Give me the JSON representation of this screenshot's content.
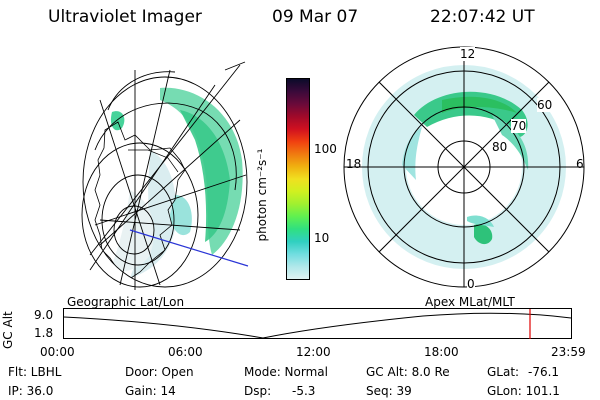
{
  "header": {
    "title": "Ultraviolet Imager",
    "date": "09 Mar 07",
    "time": "22:07:42 UT"
  },
  "colorbar": {
    "unit_label": "photon cm⁻²s⁻¹",
    "ticks": [
      "100",
      "10"
    ],
    "colors": [
      "#0b0b2a",
      "#3a0a3a",
      "#6a0a3a",
      "#a00a2a",
      "#d01020",
      "#f04010",
      "#f07a10",
      "#f0b010",
      "#f0e020",
      "#d0f020",
      "#a0f030",
      "#60f050",
      "#30e080",
      "#30d0c0",
      "#70dde0",
      "#b0e8ea",
      "#dff2f2"
    ]
  },
  "polar_plot": {
    "mlt_labels": {
      "top": "12",
      "right": "6",
      "bottom": "0",
      "left": "18"
    },
    "lat_labels": [
      "60",
      "70",
      "80"
    ]
  },
  "timeline": {
    "left_label": "Geographic Lat/Lon",
    "right_label": "Apex MLat/MLT",
    "yaxis_label": "GC Alt",
    "ymax": "9.0",
    "ymin": "1.8",
    "x_ticks": [
      "00:00",
      "06:00",
      "12:00",
      "18:00",
      "23:59"
    ],
    "marker_color": "#e00000"
  },
  "info": {
    "flt": "Flt: LBHL",
    "ip": "IP: 36.0",
    "door": "Door: Open",
    "gain": "Gain: 14",
    "mode": "Mode: Normal",
    "dsp_label": "Dsp:",
    "dsp_value": "-5.3",
    "gcalt": "GC Alt: 8.0 Re",
    "seq": "Seq: 39",
    "glat_label": "GLat:",
    "glat_value": "-76.1",
    "glon": "GLon: 101.1"
  }
}
